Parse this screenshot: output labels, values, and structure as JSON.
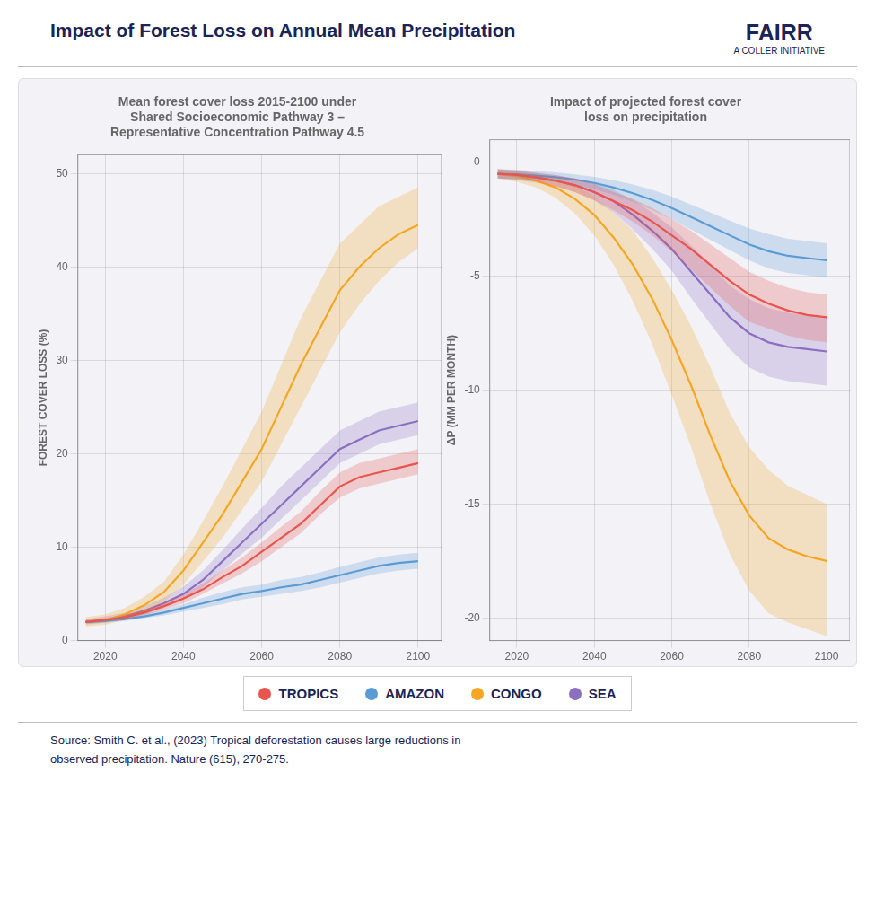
{
  "title": "Impact of Forest Loss on Annual Mean Precipitation",
  "annotations": [
    "FAIRR",
    "A COLLER INITIATIVE",
    "Source: Smith C. et al., (2023) Tropical deforestation causes large reductions in\nobserved precipitation. Nature (615), 270-275."
  ],
  "legend": "bottom",
  "chart_data": [
    {
      "type": "line",
      "title": "Mean forest cover loss 2015-2100 under\nShared Socioeconomic Pathway 3 –\nRepresentative Concentration Pathway 4.5",
      "y_label": "FOREST COVER LOSS (%)",
      "x": [
        2015,
        2020,
        2025,
        2030,
        2035,
        2040,
        2045,
        2050,
        2055,
        2060,
        2065,
        2070,
        2075,
        2080,
        2085,
        2090,
        2095,
        2100
      ],
      "xlim": [
        2013,
        2106
      ],
      "xticks": [
        2020,
        2040,
        2060,
        2080,
        2100
      ],
      "ylim": [
        0,
        52
      ],
      "yticks": [
        0,
        10,
        20,
        30,
        40,
        50
      ],
      "grid": true,
      "series": [
        {
          "name": "TROPICS",
          "color": "#E8554E",
          "values": [
            2.0,
            2.2,
            2.5,
            3.0,
            3.7,
            4.5,
            5.5,
            6.8,
            8.0,
            9.5,
            11.0,
            12.5,
            14.5,
            16.5,
            17.5,
            18.0,
            18.5,
            19.0
          ],
          "low": [
            1.8,
            2.0,
            2.3,
            2.7,
            3.3,
            4.0,
            5.0,
            6.1,
            7.2,
            8.5,
            10.0,
            11.5,
            13.5,
            15.3,
            16.3,
            16.8,
            17.3,
            17.8
          ],
          "high": [
            2.2,
            2.4,
            2.8,
            3.3,
            4.1,
            5.0,
            6.1,
            7.5,
            8.9,
            10.5,
            12.2,
            13.8,
            16.0,
            18.0,
            19.0,
            19.5,
            20.0,
            20.5
          ]
        },
        {
          "name": "AMAZON",
          "color": "#5B9BD5",
          "values": [
            2.0,
            2.1,
            2.3,
            2.6,
            3.0,
            3.5,
            4.0,
            4.5,
            5.0,
            5.3,
            5.7,
            6.0,
            6.5,
            7.0,
            7.5,
            8.0,
            8.3,
            8.5
          ],
          "low": [
            1.8,
            1.9,
            2.1,
            2.4,
            2.7,
            3.1,
            3.5,
            3.9,
            4.4,
            4.7,
            5.0,
            5.3,
            5.7,
            6.2,
            6.7,
            7.2,
            7.5,
            7.7
          ],
          "high": [
            2.2,
            2.3,
            2.5,
            2.9,
            3.3,
            3.9,
            4.6,
            5.2,
            5.7,
            6.0,
            6.5,
            6.8,
            7.3,
            7.9,
            8.4,
            8.9,
            9.2,
            9.4
          ]
        },
        {
          "name": "CONGO",
          "color": "#F5A623",
          "values": [
            2.0,
            2.2,
            2.8,
            3.8,
            5.2,
            7.5,
            10.5,
            13.5,
            17.0,
            20.5,
            25.0,
            29.5,
            33.5,
            37.5,
            40.0,
            42.0,
            43.5,
            44.5
          ],
          "low": [
            1.5,
            1.7,
            2.2,
            3.0,
            4.2,
            6.0,
            8.5,
            11.0,
            14.0,
            17.0,
            21.0,
            25.0,
            29.0,
            33.0,
            36.0,
            38.5,
            40.5,
            42.0
          ],
          "high": [
            2.5,
            2.8,
            3.5,
            4.7,
            6.3,
            9.2,
            12.8,
            16.5,
            20.5,
            24.5,
            29.5,
            34.5,
            38.5,
            42.5,
            44.5,
            46.5,
            47.5,
            48.5
          ]
        },
        {
          "name": "SEA",
          "color": "#8B6FC1",
          "values": [
            2.0,
            2.2,
            2.6,
            3.2,
            4.0,
            5.0,
            6.5,
            8.5,
            10.5,
            12.5,
            14.5,
            16.5,
            18.5,
            20.5,
            21.5,
            22.5,
            23.0,
            23.5
          ],
          "low": [
            1.7,
            1.9,
            2.3,
            2.8,
            3.5,
            4.4,
            5.7,
            7.5,
            9.3,
            11.0,
            13.0,
            15.0,
            17.0,
            19.0,
            20.0,
            21.0,
            21.5,
            22.0
          ],
          "high": [
            2.3,
            2.6,
            3.0,
            3.7,
            4.6,
            5.8,
            7.5,
            9.7,
            12.0,
            14.2,
            16.5,
            18.5,
            20.5,
            22.5,
            23.5,
            24.5,
            25.0,
            25.5
          ]
        }
      ]
    },
    {
      "type": "line",
      "title": "Impact of projected forest cover\nloss on precipitation",
      "y_label": "ΔP (MM PER MONTH)",
      "x": [
        2015,
        2020,
        2025,
        2030,
        2035,
        2040,
        2045,
        2050,
        2055,
        2060,
        2065,
        2070,
        2075,
        2080,
        2085,
        2090,
        2095,
        2100
      ],
      "xlim": [
        2013,
        2106
      ],
      "xticks": [
        2020,
        2040,
        2060,
        2080,
        2100
      ],
      "ylim": [
        -21,
        1
      ],
      "yticks": [
        -20,
        -15,
        -10,
        -5,
        0
      ],
      "grid": true,
      "series": [
        {
          "name": "TROPICS",
          "color": "#E8554E",
          "values": [
            -0.5,
            -0.55,
            -0.65,
            -0.8,
            -1.0,
            -1.3,
            -1.7,
            -2.1,
            -2.6,
            -3.2,
            -3.8,
            -4.5,
            -5.2,
            -5.8,
            -6.2,
            -6.5,
            -6.7,
            -6.8
          ],
          "low": [
            -0.3,
            -0.35,
            -0.45,
            -0.55,
            -0.7,
            -0.95,
            -1.3,
            -1.6,
            -2.0,
            -2.5,
            -3.0,
            -3.6,
            -4.2,
            -4.8,
            -5.2,
            -5.5,
            -5.7,
            -5.8
          ],
          "high": [
            -0.7,
            -0.75,
            -0.85,
            -1.05,
            -1.3,
            -1.65,
            -2.1,
            -2.6,
            -3.2,
            -3.9,
            -4.7,
            -5.5,
            -6.3,
            -7.0,
            -7.3,
            -7.6,
            -7.8,
            -7.9
          ]
        },
        {
          "name": "AMAZON",
          "color": "#5B9BD5",
          "values": [
            -0.5,
            -0.52,
            -0.58,
            -0.65,
            -0.75,
            -0.9,
            -1.1,
            -1.35,
            -1.65,
            -2.0,
            -2.4,
            -2.8,
            -3.2,
            -3.6,
            -3.9,
            -4.1,
            -4.2,
            -4.3
          ],
          "low": [
            -0.3,
            -0.32,
            -0.38,
            -0.44,
            -0.52,
            -0.63,
            -0.78,
            -0.97,
            -1.2,
            -1.5,
            -1.85,
            -2.2,
            -2.55,
            -2.9,
            -3.15,
            -3.35,
            -3.45,
            -3.55
          ],
          "high": [
            -0.7,
            -0.72,
            -0.78,
            -0.86,
            -0.98,
            -1.17,
            -1.42,
            -1.73,
            -2.1,
            -2.5,
            -2.95,
            -3.4,
            -3.85,
            -4.3,
            -4.65,
            -4.85,
            -4.95,
            -5.05
          ]
        },
        {
          "name": "CONGO",
          "color": "#F5A623",
          "values": [
            -0.5,
            -0.6,
            -0.8,
            -1.1,
            -1.6,
            -2.3,
            -3.3,
            -4.5,
            -6.0,
            -7.8,
            -9.8,
            -12.0,
            -14.0,
            -15.5,
            -16.5,
            -17.0,
            -17.3,
            -17.5
          ],
          "low": [
            -0.3,
            -0.4,
            -0.5,
            -0.7,
            -1.0,
            -1.5,
            -2.2,
            -3.0,
            -4.2,
            -5.6,
            -7.2,
            -9.0,
            -11.0,
            -12.5,
            -13.5,
            -14.2,
            -14.6,
            -15.0
          ],
          "high": [
            -0.7,
            -0.85,
            -1.1,
            -1.55,
            -2.25,
            -3.2,
            -4.5,
            -6.1,
            -8.0,
            -10.2,
            -12.5,
            -15.0,
            -17.2,
            -18.8,
            -19.8,
            -20.2,
            -20.5,
            -20.8
          ]
        },
        {
          "name": "SEA",
          "color": "#8B6FC1",
          "values": [
            -0.5,
            -0.57,
            -0.67,
            -0.8,
            -1.0,
            -1.3,
            -1.7,
            -2.3,
            -3.0,
            -3.8,
            -4.8,
            -5.8,
            -6.8,
            -7.5,
            -7.9,
            -8.1,
            -8.2,
            -8.3
          ],
          "low": [
            -0.3,
            -0.37,
            -0.45,
            -0.55,
            -0.7,
            -0.92,
            -1.2,
            -1.65,
            -2.2,
            -2.85,
            -3.65,
            -4.5,
            -5.4,
            -6.0,
            -6.4,
            -6.6,
            -6.7,
            -6.8
          ],
          "high": [
            -0.7,
            -0.77,
            -0.89,
            -1.05,
            -1.3,
            -1.68,
            -2.2,
            -2.95,
            -3.8,
            -4.75,
            -5.95,
            -7.1,
            -8.2,
            -9.0,
            -9.4,
            -9.6,
            -9.7,
            -9.8
          ]
        }
      ]
    }
  ]
}
